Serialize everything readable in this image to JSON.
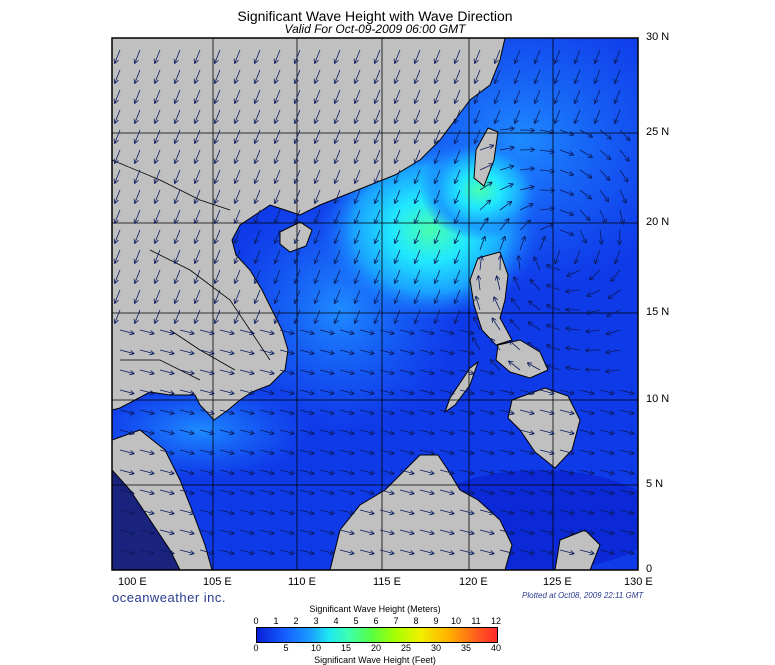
{
  "header": {
    "title": "Significant Wave Height with Wave Direction",
    "subtitle": "Valid For Oct-09-2009 06:00 GMT"
  },
  "map": {
    "lat_labels": [
      "30 N",
      "25 N",
      "20 N",
      "15 N",
      "10 N",
      "5 N",
      "0"
    ],
    "lon_labels": [
      "100 E",
      "105 E",
      "110 E",
      "115 E",
      "120 E",
      "125 E",
      "130 E"
    ],
    "colors": {
      "land": "#c0c0c0",
      "sea_low": "#0a1fd8",
      "sea_mid": "#1a6cff",
      "sea_high": "#28e0ff",
      "peak": "#48ffb0"
    }
  },
  "footer": {
    "brand": "oceanweather inc.",
    "plotted": "Plotted at Oct08, 2009 22:11 GMT"
  },
  "colorbar": {
    "title_meters": "Significant Wave Height (Meters)",
    "title_feet": "Significant Wave Height (Feet)",
    "meters_ticks": [
      "0",
      "1",
      "2",
      "3",
      "4",
      "5",
      "6",
      "7",
      "8",
      "9",
      "10",
      "11",
      "12"
    ],
    "feet_ticks": [
      "0",
      "5",
      "10",
      "15",
      "20",
      "25",
      "30",
      "35",
      "40"
    ]
  }
}
